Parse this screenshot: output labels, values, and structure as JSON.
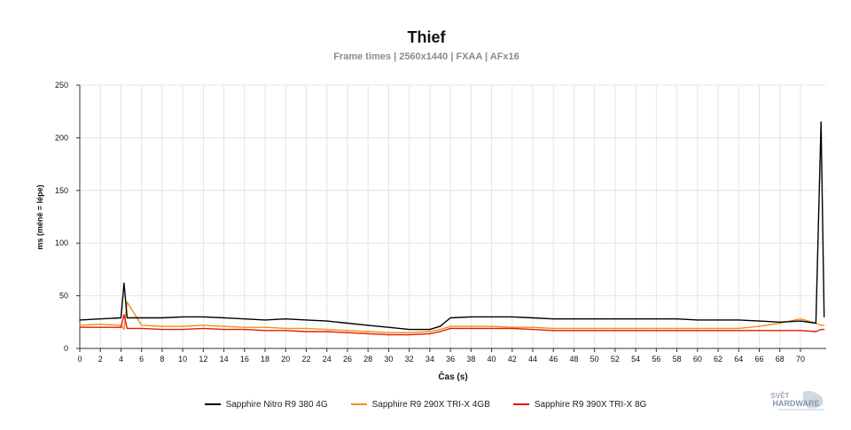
{
  "chart_data": {
    "type": "line",
    "title": "Thief",
    "subtitle": "Frame times | 2560x1440 | FXAA | AFx16",
    "xlabel": "Čas (s)",
    "ylabel": "ms (méně = lépe)",
    "xlim": [
      0,
      72.5
    ],
    "ylim": [
      0,
      250
    ],
    "xticks": [
      "0",
      "2",
      "4",
      "6",
      "8",
      "10",
      "12",
      "14",
      "16",
      "18",
      "20",
      "22",
      "24",
      "26",
      "28",
      "30",
      "32",
      "34",
      "36",
      "38",
      "40",
      "42",
      "44",
      "46",
      "48",
      "50",
      "52",
      "54",
      "56",
      "58",
      "60",
      "62",
      "64",
      "66",
      "68",
      "70"
    ],
    "yticks": [
      "0",
      "50",
      "100",
      "150",
      "200",
      "250"
    ],
    "grid": true,
    "legend_position": "bottom",
    "series": [
      {
        "name": "Sapphire Nitro R9 380 4G",
        "color": "#000000",
        "x": [
          0,
          2,
          4,
          4.3,
          4.6,
          6,
          8,
          10,
          12,
          14,
          16,
          18,
          20,
          22,
          24,
          26,
          28,
          30,
          32,
          34,
          35,
          36,
          38,
          40,
          42,
          44,
          46,
          48,
          50,
          52,
          54,
          56,
          58,
          60,
          62,
          64,
          66,
          68,
          70,
          71.5,
          72,
          72.3
        ],
        "y": [
          27,
          28,
          29,
          62,
          29,
          29,
          29,
          30,
          30,
          29,
          28,
          27,
          28,
          27,
          26,
          24,
          22,
          20,
          18,
          18,
          21,
          29,
          30,
          30,
          30,
          29,
          28,
          28,
          28,
          28,
          28,
          28,
          28,
          27,
          27,
          27,
          26,
          25,
          26,
          24,
          215,
          30
        ]
      },
      {
        "name": "Sapphire R9 290X TRI-X 4GB",
        "color": "#f0900a",
        "x": [
          0,
          2,
          4,
          4.3,
          4.6,
          6,
          8,
          10,
          12,
          14,
          16,
          18,
          20,
          22,
          24,
          26,
          28,
          30,
          32,
          34,
          35,
          36,
          38,
          40,
          42,
          44,
          46,
          48,
          50,
          52,
          54,
          56,
          58,
          60,
          62,
          64,
          66,
          68,
          70,
          71.5,
          72,
          72.3
        ],
        "y": [
          22,
          23,
          22,
          18,
          44,
          22,
          21,
          21,
          22,
          21,
          20,
          20,
          19,
          19,
          18,
          17,
          16,
          15,
          15,
          16,
          18,
          21,
          21,
          21,
          20,
          20,
          19,
          19,
          19,
          19,
          19,
          19,
          19,
          19,
          19,
          19,
          21,
          24,
          28,
          24,
          22,
          22
        ]
      },
      {
        "name": "Sapphire R9 390X TRI-X 8G",
        "color": "#e8160c",
        "x": [
          0,
          2,
          4,
          4.3,
          4.6,
          6,
          8,
          10,
          12,
          14,
          16,
          18,
          20,
          22,
          24,
          26,
          28,
          30,
          32,
          34,
          35,
          36,
          38,
          40,
          42,
          44,
          46,
          48,
          50,
          52,
          54,
          56,
          58,
          60,
          62,
          64,
          66,
          68,
          70,
          71.5,
          72,
          72.3
        ],
        "y": [
          20,
          20,
          20,
          32,
          19,
          19,
          18,
          18,
          19,
          18,
          18,
          17,
          17,
          16,
          16,
          15,
          14,
          13,
          13,
          14,
          16,
          19,
          19,
          19,
          19,
          18,
          17,
          17,
          17,
          17,
          17,
          17,
          17,
          17,
          17,
          17,
          17,
          17,
          17,
          16,
          18,
          18
        ]
      }
    ]
  },
  "watermark": {
    "line1": "SVĚT",
    "line2": "HARDWARE"
  }
}
